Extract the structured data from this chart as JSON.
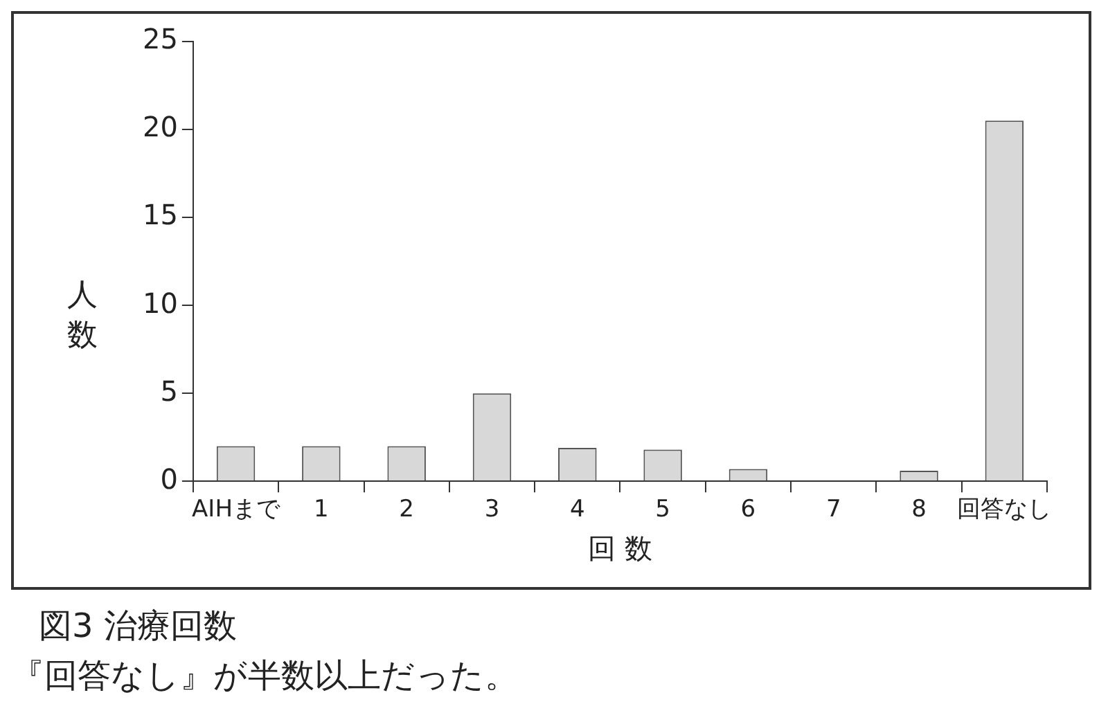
{
  "chart_data": {
    "type": "bar",
    "title": "図3 治療回数",
    "subtitle": "『回答なし』が半数以上だった。",
    "xlabel": "回 数",
    "ylabel": "人数",
    "categories": [
      "AIHまで",
      "1",
      "2",
      "3",
      "4",
      "5",
      "6",
      "7",
      "8",
      "回答なし"
    ],
    "values": [
      2,
      2,
      2,
      5,
      1.9,
      1.8,
      0.7,
      0,
      0.6,
      20.5
    ],
    "color": "#d8d8d8",
    "ylim": [
      0,
      25
    ],
    "yticks": [
      0,
      5,
      10,
      15,
      20,
      25
    ],
    "grid": false,
    "legend": false
  }
}
